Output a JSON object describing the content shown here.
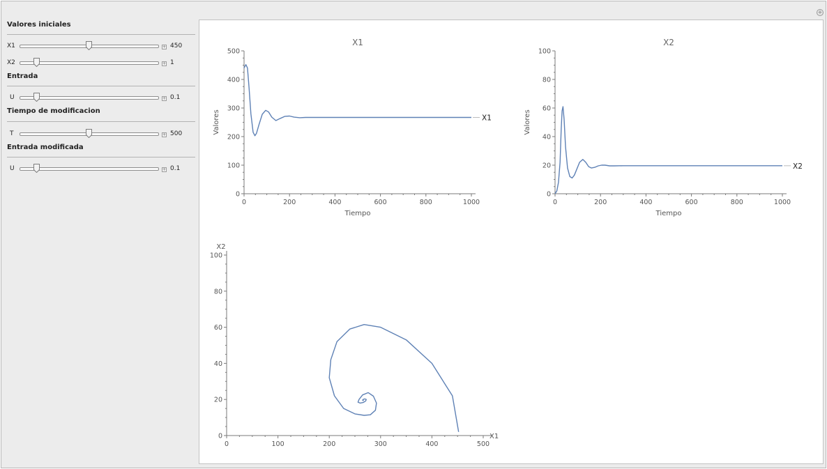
{
  "controls": {
    "section_initial": "Valores iniciales",
    "x1": {
      "label": "X1",
      "value": "450",
      "fraction": 0.5
    },
    "x2": {
      "label": "X2",
      "value": "1",
      "fraction": 0.12
    },
    "section_input": "Entrada",
    "u1": {
      "label": "U",
      "value": "0.1",
      "fraction": 0.12
    },
    "section_time": "Tiempo de modificacion",
    "t": {
      "label": "T",
      "value": "500",
      "fraction": 0.5
    },
    "section_mod": "Entrada modificada",
    "u2": {
      "label": "U",
      "value": "0.1",
      "fraction": 0.12
    }
  },
  "chart_data": [
    {
      "type": "line",
      "title": "X1",
      "xlabel": "Tiempo",
      "ylabel": "Valores",
      "xlim": [
        0,
        1000
      ],
      "ylim": [
        0,
        500
      ],
      "xticks": [
        "0",
        "200",
        "400",
        "600",
        "800",
        "1000"
      ],
      "yticks": [
        "0",
        "100",
        "200",
        "300",
        "400",
        "500"
      ],
      "series": [
        {
          "name": "X1",
          "color": "#5e81b5",
          "x": [
            0,
            8,
            15,
            22,
            30,
            40,
            48,
            55,
            65,
            80,
            95,
            108,
            122,
            140,
            160,
            180,
            200,
            220,
            245,
            270,
            300,
            350,
            400,
            500,
            600,
            700,
            800,
            900,
            1000
          ],
          "y": [
            440,
            452,
            440,
            370,
            280,
            215,
            203,
            212,
            240,
            278,
            292,
            286,
            268,
            256,
            264,
            271,
            272,
            268,
            266,
            267,
            267,
            267,
            267,
            267,
            267,
            267,
            267,
            267,
            267
          ]
        }
      ]
    },
    {
      "type": "line",
      "title": "X2",
      "xlabel": "Tiempo",
      "ylabel": "Valores",
      "xlim": [
        0,
        1000
      ],
      "ylim": [
        0,
        100
      ],
      "xticks": [
        "0",
        "200",
        "400",
        "600",
        "800",
        "1000"
      ],
      "yticks": [
        "0",
        "20",
        "40",
        "60",
        "80",
        "100"
      ],
      "series": [
        {
          "name": "X2",
          "color": "#5e81b5",
          "x": [
            0,
            8,
            15,
            22,
            27,
            31,
            35,
            40,
            46,
            55,
            65,
            75,
            85,
            95,
            108,
            122,
            135,
            148,
            160,
            175,
            190,
            205,
            220,
            240,
            260,
            300,
            350,
            400,
            500,
            600,
            800,
            1000
          ],
          "y": [
            0,
            2,
            8,
            22,
            45,
            58,
            61,
            52,
            33,
            18,
            12,
            11,
            13,
            17,
            22,
            24,
            22,
            19,
            18,
            18.5,
            19.5,
            20,
            20,
            19.5,
            19.5,
            19.6,
            19.6,
            19.6,
            19.6,
            19.6,
            19.6,
            19.6
          ]
        }
      ]
    },
    {
      "type": "line",
      "title": "",
      "xlabel": "X1",
      "ylabel": "X2",
      "xlim": [
        0,
        500
      ],
      "ylim": [
        0,
        100
      ],
      "xticks": [
        "0",
        "100",
        "200",
        "300",
        "400",
        "500"
      ],
      "yticks": [
        "0",
        "20",
        "40",
        "60",
        "80",
        "100"
      ],
      "series": [
        {
          "name": "",
          "color": "#5e81b5",
          "x": [
            452,
            440,
            400,
            350,
            300,
            268,
            240,
            215,
            203,
            200,
            210,
            228,
            250,
            268,
            280,
            290,
            292,
            286,
            276,
            265,
            258,
            256,
            260,
            266,
            271,
            272,
            269,
            266,
            265,
            266,
            267
          ],
          "y": [
            2,
            22,
            40,
            53,
            60,
            61.5,
            59,
            52,
            42,
            32,
            22,
            15,
            12,
            11.2,
            11.5,
            14,
            18,
            21.8,
            23.8,
            22.5,
            20,
            18.5,
            18,
            18.3,
            19.2,
            20,
            20.3,
            20,
            19.6,
            19.4,
            19.6
          ]
        }
      ]
    }
  ]
}
